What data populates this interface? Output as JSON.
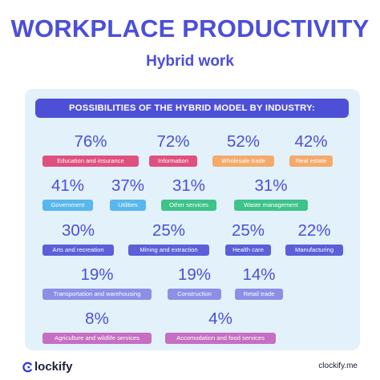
{
  "title": "WORKPLACE PRODUCTIVITY",
  "subtitle": "Hybrid work",
  "panel_header": "POSSIBILITIES OF THE HYBRID MODEL BY INDUSTRY:",
  "footer": {
    "logo_text": "lockify",
    "url": "clockify.me",
    "logo_color": "#2f3bd6"
  },
  "chart_data": {
    "type": "table",
    "title": "POSSIBILITIES OF THE HYBRID MODEL BY INDUSTRY:",
    "unit": "%",
    "categories": [
      "Education and insurance",
      "Information",
      "Wholesale trade",
      "Real estate",
      "Government",
      "Utilities",
      "Other services",
      "Waste management",
      "Arts and recreation",
      "Mining and extraction",
      "Health care",
      "Manufacturing",
      "Transportation and warehousing",
      "Construction",
      "Retail trade",
      "Agriculture and wildlife services",
      "Accomodation and food services"
    ],
    "values": [
      76,
      72,
      52,
      42,
      41,
      37,
      31,
      31,
      30,
      25,
      25,
      22,
      19,
      19,
      14,
      8,
      4
    ],
    "labels": [
      "76%",
      "72%",
      "52%",
      "42%",
      "41%",
      "37%",
      "31%",
      "31%",
      "30%",
      "25%",
      "25%",
      "22%",
      "19%",
      "19%",
      "14%",
      "8%",
      "4%"
    ],
    "colors": [
      "#e0507f",
      "#e0507f",
      "#f4aa6b",
      "#f4aa6b",
      "#58b7ec",
      "#58b7ec",
      "#3ec38a",
      "#3ec38a",
      "#5b5fd8",
      "#5b5fd8",
      "#5b5fd8",
      "#5b5fd8",
      "#8b8fe6",
      "#8b8fe6",
      "#8b8fe6",
      "#c56fc2",
      "#c56fc2"
    ]
  }
}
